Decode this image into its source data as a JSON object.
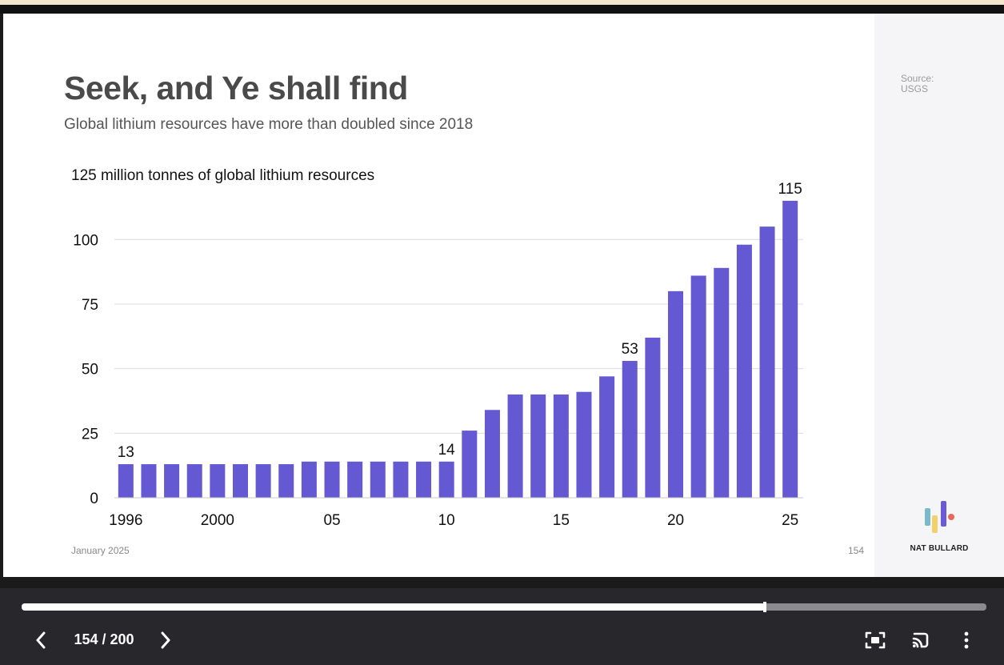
{
  "slide": {
    "title": "Seek, and Ye shall find",
    "subtitle": "Global lithium resources have more than doubled since 2018",
    "source": "Source:\nUSGS",
    "date": "January 2025",
    "page_number": "154",
    "brand": "NAT BULLARD",
    "logo_colors": [
      "#79b9c9",
      "#f2d06b",
      "#6a5ad8",
      "#e8675a"
    ]
  },
  "chart_data": {
    "type": "bar",
    "title": "",
    "ylabel": "125 million tonnes of global lithium resources",
    "xlabel": "",
    "color": "#6558d3",
    "ylim": [
      0,
      125
    ],
    "yticks": [
      0,
      25,
      50,
      75,
      100
    ],
    "categories": [
      "1996",
      "1997",
      "1998",
      "1999",
      "2000",
      "2001",
      "2002",
      "2003",
      "2004",
      "2005",
      "2006",
      "2007",
      "2008",
      "2009",
      "2010",
      "2011",
      "2012",
      "2013",
      "2014",
      "2015",
      "2016",
      "2017",
      "2018",
      "2019",
      "2020",
      "2021",
      "2022",
      "2023",
      "2024",
      "2025"
    ],
    "values": [
      13,
      13,
      13,
      13,
      13,
      13,
      13,
      13,
      14,
      14,
      14,
      14,
      14,
      14,
      14,
      26,
      34,
      40,
      40,
      40,
      41,
      47,
      53,
      62,
      80,
      86,
      89,
      98,
      105,
      115
    ],
    "xtick_labels": [
      {
        "index": 0,
        "label": "1996"
      },
      {
        "index": 4,
        "label": "2000"
      },
      {
        "index": 9,
        "label": "05"
      },
      {
        "index": 14,
        "label": "10"
      },
      {
        "index": 19,
        "label": "15"
      },
      {
        "index": 24,
        "label": "20"
      },
      {
        "index": 29,
        "label": "25"
      }
    ],
    "data_labels": [
      {
        "index": 0,
        "label": "13"
      },
      {
        "index": 14,
        "label": "14"
      },
      {
        "index": 22,
        "label": "53"
      },
      {
        "index": 29,
        "label": "115"
      }
    ],
    "grid": true
  },
  "player": {
    "counter": "154 / 200",
    "progress": 0.77,
    "prev_icon": "chevron-left-icon",
    "next_icon": "chevron-right-icon",
    "fullscreen_icon": "fullscreen-icon",
    "cast_icon": "cast-icon",
    "more_icon": "more-vertical-icon"
  }
}
